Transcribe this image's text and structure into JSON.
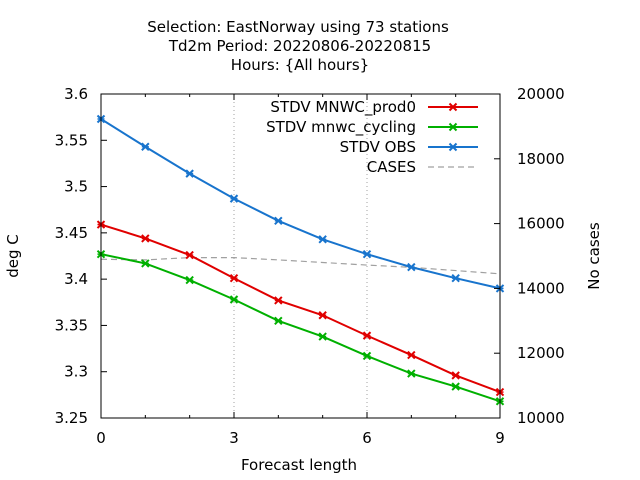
{
  "title_lines": [
    "Selection: EastNorway using    73 stations",
    "Td2m   Period: 20220806-20220815",
    "Hours: {All hours}"
  ],
  "chart_data": {
    "type": "line",
    "xlabel": "Forecast length",
    "ylabel": "deg C",
    "y2label": "No cases",
    "xlim": [
      0,
      9
    ],
    "ylim": [
      3.25,
      3.6
    ],
    "y2lim": [
      10000,
      20000
    ],
    "xticks": [
      "0",
      "3",
      "6",
      "9"
    ],
    "yticks": [
      "3.25",
      "3.3",
      "3.35",
      "3.4",
      "3.45",
      "3.5",
      "3.55",
      "3.6"
    ],
    "y2ticks": [
      "10000",
      "12000",
      "14000",
      "16000",
      "18000",
      "20000"
    ],
    "grid": "vertical lines at x ticks",
    "legend_position": "top-right",
    "x": [
      0,
      1,
      2,
      3,
      4,
      5,
      6,
      7,
      8,
      9
    ],
    "series": [
      {
        "name": "STDV MNWC_prod0",
        "color": "#e00000",
        "axis": "y",
        "values": [
          3.459,
          3.444,
          3.426,
          3.401,
          3.377,
          3.361,
          3.339,
          3.318,
          3.296,
          3.278
        ]
      },
      {
        "name": "STDV mnwc_cycling",
        "color": "#00b000",
        "axis": "y",
        "values": [
          3.427,
          3.417,
          3.399,
          3.378,
          3.355,
          3.338,
          3.317,
          3.298,
          3.284,
          3.268
        ]
      },
      {
        "name": "STDV OBS",
        "color": "#1874cd",
        "axis": "y",
        "values": [
          3.573,
          3.543,
          3.514,
          3.487,
          3.463,
          3.443,
          3.427,
          3.413,
          3.401,
          3.39
        ]
      },
      {
        "name": "CASES",
        "color": "#a0a0a0",
        "axis": "y2",
        "dashed": true,
        "values": [
          14900,
          14880,
          14950,
          14950,
          14880,
          14800,
          14720,
          14650,
          14550,
          14450
        ]
      }
    ]
  }
}
